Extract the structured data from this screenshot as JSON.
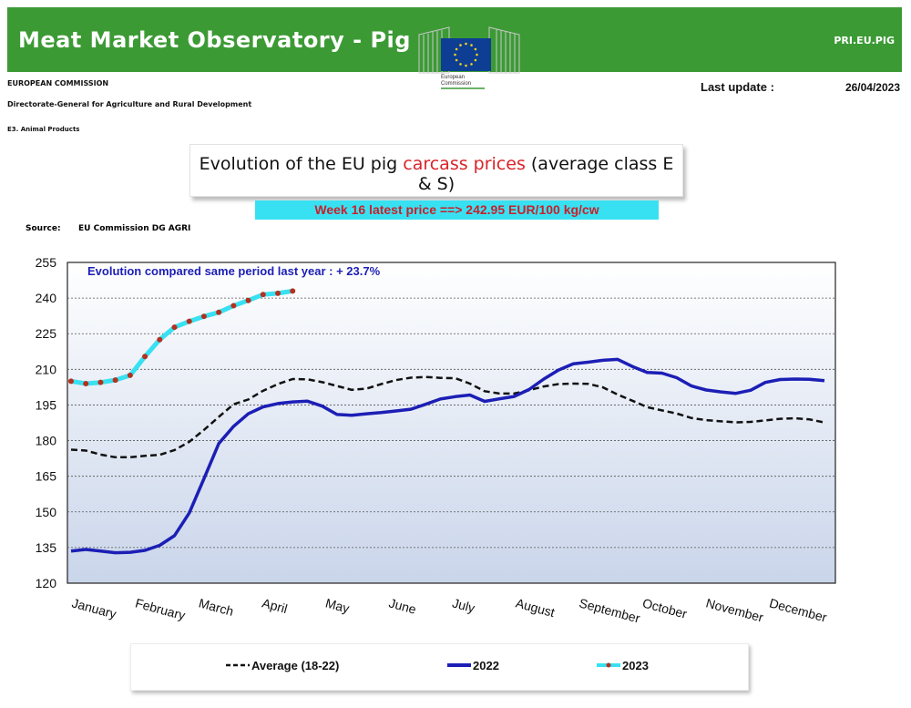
{
  "header": {
    "title": "Meat Market Observatory - Pig",
    "code": "PRI.EU.PIG",
    "logo_text_1": "European",
    "logo_text_2": "Commission",
    "org_line1": "EUROPEAN COMMISSION",
    "org_line2": "Directorate-General for Agriculture and Rural Development",
    "org_line3": "E3. Animal Products",
    "last_update_label": "Last update :",
    "last_update_date": "26/04/2023"
  },
  "colors": {
    "banner": "#3c9a35",
    "series_2022": "#1c1fb5",
    "series_2023_line": "#38e1f2",
    "series_2023_marker": "#b5301e",
    "series_avg": "#111111",
    "title_red": "#d9232a",
    "latest_box": "#38e1f2"
  },
  "title": {
    "part1": "Evolution of the EU pig ",
    "part2": "carcass prices",
    "part3": " (average class E & S)"
  },
  "latest": {
    "text": "Week 16 latest price ==>  242.95 EUR/100 kg/cw"
  },
  "source": {
    "label": "Source:",
    "text": "EU Commission DG AGRI"
  },
  "chart_data": {
    "type": "line",
    "title": "Evolution of the EU pig carcass prices (average class E & S)",
    "annotation": "Evolution compared same period last year   : + 23.7%",
    "ylim": [
      120,
      255
    ],
    "yticks": [
      120,
      135,
      150,
      165,
      180,
      195,
      210,
      225,
      240,
      255
    ],
    "xlim": [
      1,
      52
    ],
    "months": [
      "January",
      "February",
      "March",
      "April",
      "May",
      "June",
      "July",
      "August",
      "September",
      "October",
      "November",
      "December"
    ],
    "grid": true,
    "legend_position": "bottom",
    "series": [
      {
        "name": "Average (18-22)",
        "style": "dashed",
        "x": [
          1,
          2,
          3,
          4,
          5,
          6,
          7,
          8,
          9,
          10,
          11,
          12,
          13,
          14,
          15,
          16,
          17,
          18,
          19,
          20,
          21,
          22,
          23,
          24,
          25,
          26,
          27,
          28,
          29,
          30,
          31,
          32,
          33,
          34,
          35,
          36,
          37,
          38,
          39,
          40,
          41,
          42,
          43,
          44,
          45,
          46,
          47,
          48,
          49,
          50,
          51,
          52
        ],
        "values": [
          176.2,
          175.8,
          174.1,
          173.0,
          173.0,
          173.6,
          174.0,
          176.0,
          179.5,
          184.5,
          190.0,
          195.3,
          197.3,
          201.0,
          203.8,
          205.9,
          205.8,
          204.6,
          203.0,
          201.4,
          201.9,
          203.8,
          205.5,
          206.5,
          206.8,
          206.4,
          206.3,
          204.0,
          200.8,
          199.8,
          199.8,
          201.2,
          202.8,
          203.8,
          204.0,
          203.9,
          202.4,
          199.4,
          196.8,
          194.1,
          192.7,
          191.4,
          189.5,
          188.6,
          188.1,
          187.7,
          187.9,
          188.5,
          189.2,
          189.4,
          188.9,
          187.6
        ]
      },
      {
        "name": "2022",
        "style": "solid",
        "x": [
          1,
          2,
          3,
          4,
          5,
          6,
          7,
          8,
          9,
          10,
          11,
          12,
          13,
          14,
          15,
          16,
          17,
          18,
          19,
          20,
          21,
          22,
          23,
          24,
          25,
          26,
          27,
          28,
          29,
          30,
          31,
          32,
          33,
          34,
          35,
          36,
          37,
          38,
          39,
          40,
          41,
          42,
          43,
          44,
          45,
          46,
          47,
          48,
          49,
          50,
          51,
          52
        ],
        "values": [
          133.5,
          134.2,
          133.5,
          132.8,
          133.0,
          133.8,
          135.9,
          140.0,
          149.5,
          164.0,
          178.8,
          186.0,
          191.3,
          194.2,
          195.6,
          196.3,
          196.6,
          194.5,
          191.0,
          190.7,
          191.3,
          191.8,
          192.5,
          193.2,
          195.3,
          197.5,
          198.5,
          199.2,
          196.5,
          197.6,
          198.6,
          201.5,
          205.9,
          209.7,
          212.3,
          213.0,
          213.8,
          214.2,
          211.2,
          208.7,
          208.4,
          206.5,
          203.0,
          201.3,
          200.5,
          199.9,
          201.2,
          204.5,
          205.7,
          205.9,
          205.8,
          205.2
        ]
      },
      {
        "name": "2023",
        "style": "solid-markers",
        "x": [
          1,
          2,
          3,
          4,
          5,
          6,
          7,
          8,
          9,
          10,
          11,
          12,
          13,
          14,
          15,
          16
        ],
        "values": [
          205.0,
          204.0,
          204.5,
          205.5,
          207.5,
          215.4,
          222.5,
          227.7,
          230.2,
          232.3,
          234.0,
          236.8,
          239.0,
          241.5,
          242.0,
          242.95
        ]
      }
    ]
  },
  "legend": {
    "avg": "Average (18-22)",
    "y2022": "2022",
    "y2023": "2023"
  }
}
